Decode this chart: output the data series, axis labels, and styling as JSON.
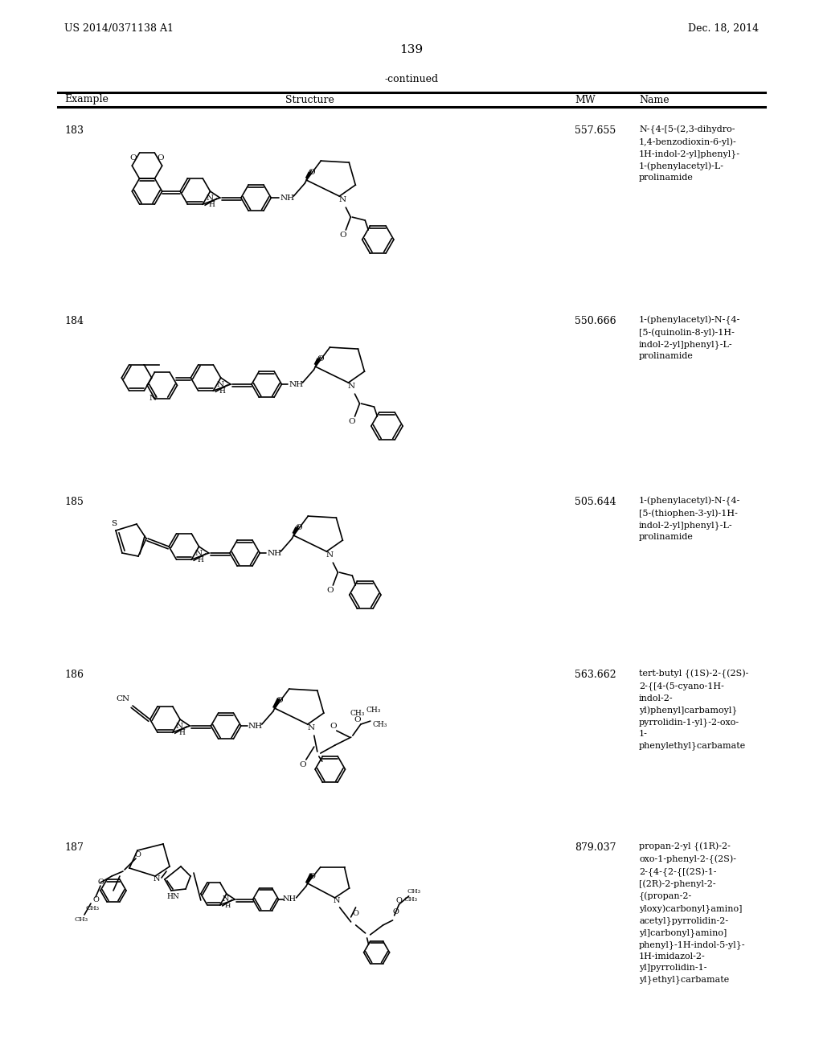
{
  "background_color": "#ffffff",
  "page_number": "139",
  "header_left": "US 2014/0371138 A1",
  "header_right": "Dec. 18, 2014",
  "continued_text": "-continued",
  "col_headers": [
    "Example",
    "Structure",
    "MW",
    "Name"
  ],
  "examples": [
    "183",
    "184",
    "185",
    "186",
    "187"
  ],
  "mw_values": [
    "557.655",
    "550.666",
    "505.644",
    "563.662",
    "879.037"
  ],
  "names": [
    "N-{4-[5-(2,3-dihydro-\n1,4-benzodioxin-6-yl)-\n1H-indol-2-yl]phenyl}-\n1-(phenylacetyl)-L-\nprolinamide",
    "1-(phenylacetyl)-N-{4-\n[5-(quinolin-8-yl)-1H-\nindol-2-yl]phenyl}-L-\nprolinamide",
    "1-(phenylacetyl)-N-{4-\n[5-(thiophen-3-yl)-1H-\nindol-2-yl]phenyl}-L-\nprolinamide",
    "tert-butyl {(1S)-2-{(2S)-\n2-{[4-(5-cyano-1H-\nindol-2-\nyl)phenyl]carbamoyl}\npyrrolidin-1-yl}-2-oxo-\n1-\nphenylethyl}carbamate",
    "propan-2-yl {(1R)-2-\noxo-1-phenyl-2-{(2S)-\n2-{4-{2-{[(2S)-1-\n[(2R)-2-phenyl-2-\n{(propan-2-\nyloxy)carbonyl}amino]\nacetyl}pyrrolidin-2-\nyl]carbonyl}amino]\nphenyl}-1H-indol-5-yl}-\n1H-imidazol-2-\nyl]pyrrolidin-1-\nyl}ethyl}carbamate"
  ],
  "lw": 1.2
}
